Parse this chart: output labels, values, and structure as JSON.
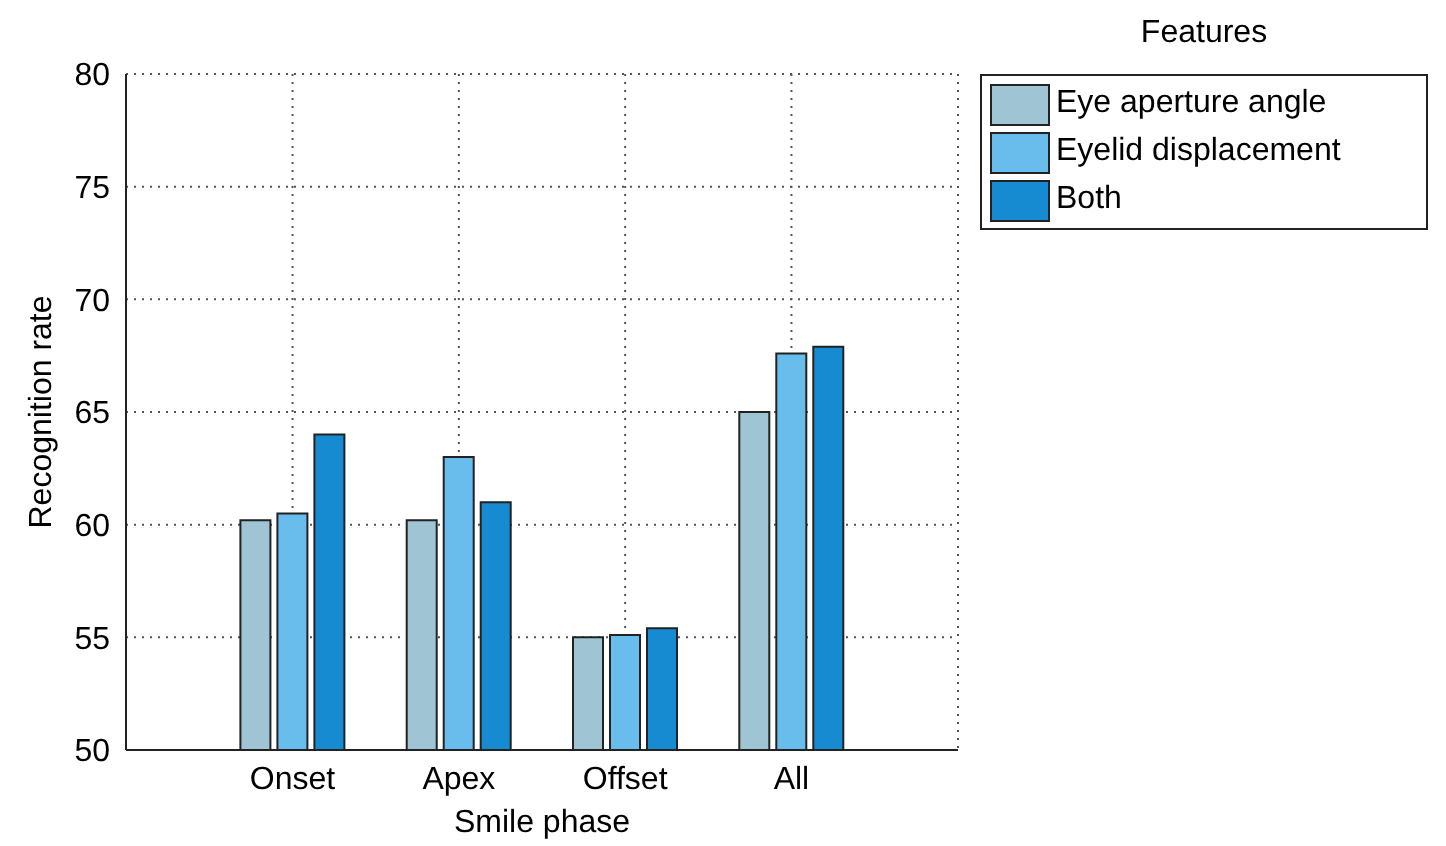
{
  "chart_data": {
    "type": "bar",
    "xlabel": "Smile phase",
    "ylabel": "Recognition rate",
    "legend_title": "Features",
    "categories": [
      "Onset",
      "Apex",
      "Offset",
      "All"
    ],
    "series": [
      {
        "name": "Eye aperture angle",
        "color": "#9fc4d4",
        "values": [
          60.2,
          60.2,
          55.0,
          65.0
        ]
      },
      {
        "name": "Eyelid displacement",
        "color": "#69bdec",
        "values": [
          60.5,
          63.0,
          55.1,
          67.6
        ]
      },
      {
        "name": "Both",
        "color": "#168bd2",
        "values": [
          64.0,
          61.0,
          55.4,
          67.9
        ]
      }
    ],
    "ylim": [
      50,
      80
    ],
    "yticks": [
      50,
      55,
      60,
      65,
      70,
      75,
      80
    ],
    "grid": true,
    "legend": "right"
  }
}
